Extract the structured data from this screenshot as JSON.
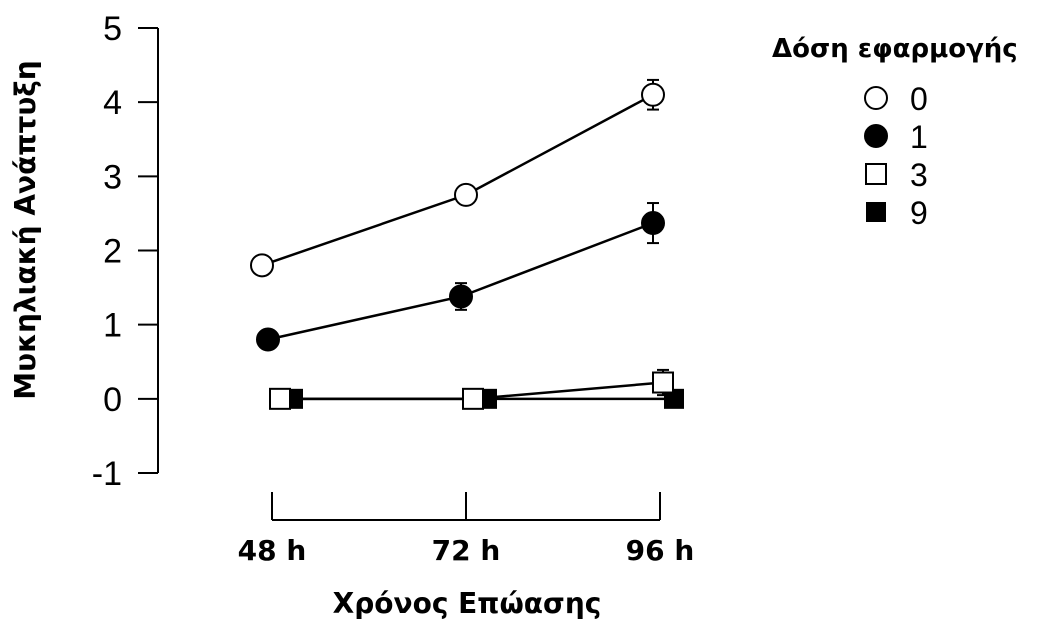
{
  "chart_data": {
    "type": "line",
    "title": "",
    "xlabel": "Χρόνος Επώασης",
    "ylabel": "Μυκηλιακή Ανάπτυξη",
    "categories": [
      "48 h",
      "72 h",
      "96 h"
    ],
    "yticks": [
      "-1",
      "0",
      "1",
      "2",
      "3",
      "4",
      "5"
    ],
    "ylim": [
      -1,
      5
    ],
    "grid": false,
    "legend": {
      "title": "Δόση εφαρμογής",
      "placement": "right"
    },
    "series": [
      {
        "name": "0",
        "marker": "open-circle",
        "values": [
          1.8,
          2.75,
          4.1
        ],
        "errors": [
          0,
          0,
          0.2
        ]
      },
      {
        "name": "1",
        "marker": "filled-circle",
        "values": [
          0.8,
          1.38,
          2.37
        ],
        "errors": [
          0.1,
          0.18,
          0.27
        ]
      },
      {
        "name": "3",
        "marker": "open-square",
        "values": [
          0,
          0,
          0.22
        ],
        "errors": [
          0,
          0,
          0.17
        ]
      },
      {
        "name": "9",
        "marker": "filled-square",
        "values": [
          0,
          0,
          0
        ],
        "errors": [
          0,
          0,
          0
        ]
      }
    ]
  }
}
